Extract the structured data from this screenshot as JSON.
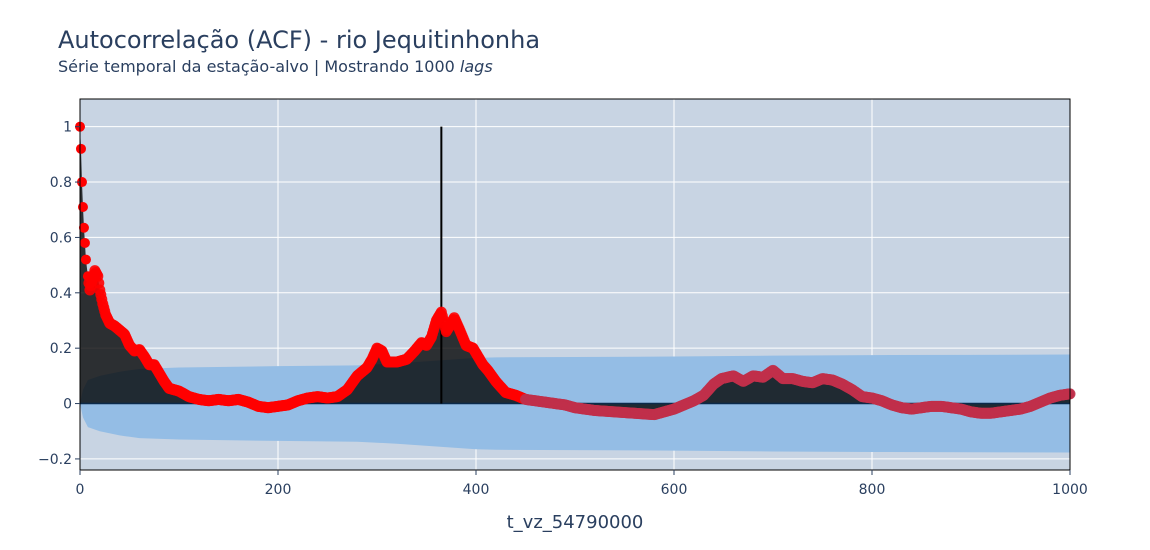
{
  "chart_data": {
    "type": "area",
    "title": "Autocorrelação (ACF) - rio Jequitinhonha",
    "subtitle_main": "Série temporal da estação-alvo | Mostrando 1000 ",
    "subtitle_em": "lags",
    "xlabel": "t_vz_54790000",
    "ylabel": "",
    "xlim": [
      0,
      1000
    ],
    "ylim": [
      -0.24,
      1.1
    ],
    "x_ticks": [
      0,
      200,
      400,
      600,
      800,
      1000
    ],
    "x_tick_labels": [
      "0",
      "200",
      "400",
      "600",
      "800",
      "1000"
    ],
    "y_ticks": [
      -0.2,
      0,
      0.2,
      0.4,
      0.6,
      0.8,
      1
    ],
    "y_tick_labels": [
      "−0.2",
      "0",
      "0.2",
      "0.4",
      "0.6",
      "0.8",
      "1"
    ],
    "grid": true,
    "legend": "none",
    "colors": {
      "plot_bg": "#c8d4e3",
      "grid": "#ffffff",
      "confidence_band": "#94bde5",
      "acf_fill": "#000000",
      "acf_markers": "#ff0000",
      "acf_markers_far": "#c0304a",
      "text": "#2a3f5f"
    },
    "acf_points": [
      [
        0,
        1.0
      ],
      [
        1,
        0.92
      ],
      [
        2,
        0.8
      ],
      [
        3,
        0.71
      ],
      [
        4,
        0.635
      ],
      [
        5,
        0.58
      ],
      [
        6,
        0.52
      ],
      [
        8,
        0.46
      ],
      [
        10,
        0.41
      ],
      [
        12,
        0.44
      ],
      [
        15,
        0.48
      ],
      [
        18,
        0.46
      ],
      [
        20,
        0.41
      ],
      [
        23,
        0.36
      ],
      [
        26,
        0.32
      ],
      [
        30,
        0.29
      ],
      [
        35,
        0.28
      ],
      [
        40,
        0.265
      ],
      [
        45,
        0.25
      ],
      [
        50,
        0.21
      ],
      [
        55,
        0.19
      ],
      [
        60,
        0.195
      ],
      [
        65,
        0.17
      ],
      [
        70,
        0.14
      ],
      [
        75,
        0.14
      ],
      [
        80,
        0.11
      ],
      [
        85,
        0.08
      ],
      [
        90,
        0.055
      ],
      [
        95,
        0.05
      ],
      [
        100,
        0.045
      ],
      [
        110,
        0.025
      ],
      [
        120,
        0.015
      ],
      [
        130,
        0.01
      ],
      [
        140,
        0.015
      ],
      [
        150,
        0.01
      ],
      [
        160,
        0.015
      ],
      [
        170,
        0.005
      ],
      [
        180,
        -0.01
      ],
      [
        190,
        -0.015
      ],
      [
        200,
        -0.01
      ],
      [
        210,
        -0.005
      ],
      [
        220,
        0.01
      ],
      [
        230,
        0.02
      ],
      [
        240,
        0.025
      ],
      [
        250,
        0.02
      ],
      [
        260,
        0.025
      ],
      [
        270,
        0.05
      ],
      [
        280,
        0.1
      ],
      [
        290,
        0.13
      ],
      [
        295,
        0.16
      ],
      [
        300,
        0.2
      ],
      [
        305,
        0.19
      ],
      [
        310,
        0.15
      ],
      [
        320,
        0.15
      ],
      [
        330,
        0.16
      ],
      [
        338,
        0.19
      ],
      [
        345,
        0.22
      ],
      [
        350,
        0.21
      ],
      [
        355,
        0.24
      ],
      [
        360,
        0.3
      ],
      [
        365,
        0.33
      ],
      [
        370,
        0.26
      ],
      [
        375,
        0.29
      ],
      [
        378,
        0.31
      ],
      [
        383,
        0.27
      ],
      [
        390,
        0.21
      ],
      [
        397,
        0.2
      ],
      [
        402,
        0.17
      ],
      [
        407,
        0.14
      ],
      [
        412,
        0.12
      ],
      [
        420,
        0.08
      ],
      [
        430,
        0.04
      ],
      [
        440,
        0.03
      ],
      [
        450,
        0.015
      ],
      [
        460,
        0.01
      ],
      [
        470,
        0.005
      ],
      [
        480,
        0.0
      ],
      [
        490,
        -0.005
      ],
      [
        500,
        -0.015
      ],
      [
        520,
        -0.025
      ],
      [
        540,
        -0.03
      ],
      [
        560,
        -0.035
      ],
      [
        580,
        -0.04
      ],
      [
        590,
        -0.03
      ],
      [
        600,
        -0.02
      ],
      [
        610,
        -0.005
      ],
      [
        620,
        0.01
      ],
      [
        630,
        0.03
      ],
      [
        640,
        0.07
      ],
      [
        648,
        0.09
      ],
      [
        660,
        0.1
      ],
      [
        670,
        0.08
      ],
      [
        680,
        0.1
      ],
      [
        690,
        0.095
      ],
      [
        700,
        0.12
      ],
      [
        710,
        0.09
      ],
      [
        720,
        0.09
      ],
      [
        730,
        0.08
      ],
      [
        740,
        0.075
      ],
      [
        750,
        0.09
      ],
      [
        760,
        0.085
      ],
      [
        770,
        0.07
      ],
      [
        780,
        0.05
      ],
      [
        790,
        0.025
      ],
      [
        800,
        0.02
      ],
      [
        810,
        0.01
      ],
      [
        820,
        -0.005
      ],
      [
        830,
        -0.015
      ],
      [
        840,
        -0.02
      ],
      [
        850,
        -0.015
      ],
      [
        860,
        -0.01
      ],
      [
        870,
        -0.01
      ],
      [
        880,
        -0.015
      ],
      [
        890,
        -0.02
      ],
      [
        900,
        -0.03
      ],
      [
        910,
        -0.035
      ],
      [
        920,
        -0.035
      ],
      [
        930,
        -0.03
      ],
      [
        940,
        -0.025
      ],
      [
        950,
        -0.02
      ],
      [
        960,
        -0.01
      ],
      [
        970,
        0.005
      ],
      [
        980,
        0.02
      ],
      [
        990,
        0.03
      ],
      [
        1000,
        0.035
      ]
    ],
    "confidence_upper": [
      [
        0,
        0.0
      ],
      [
        3,
        0.05
      ],
      [
        8,
        0.085
      ],
      [
        20,
        0.1
      ],
      [
        40,
        0.115
      ],
      [
        60,
        0.125
      ],
      [
        100,
        0.13
      ],
      [
        200,
        0.135
      ],
      [
        280,
        0.138
      ],
      [
        320,
        0.145
      ],
      [
        360,
        0.155
      ],
      [
        400,
        0.165
      ],
      [
        420,
        0.167
      ],
      [
        500,
        0.168
      ],
      [
        600,
        0.17
      ],
      [
        700,
        0.173
      ],
      [
        800,
        0.175
      ],
      [
        900,
        0.176
      ],
      [
        1000,
        0.177
      ]
    ],
    "spike": {
      "x": 365,
      "y": 1.0
    }
  }
}
